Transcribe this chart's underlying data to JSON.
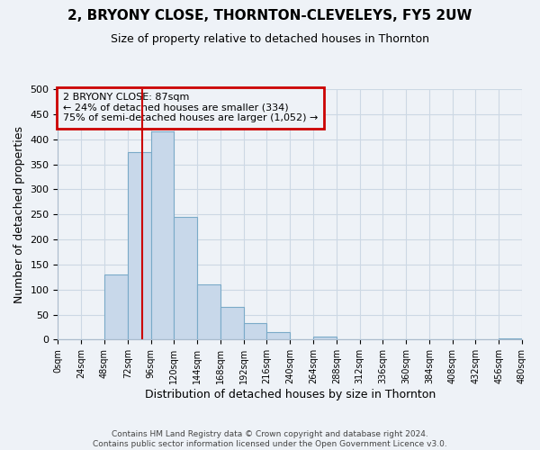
{
  "title": "2, BRYONY CLOSE, THORNTON-CLEVELEYS, FY5 2UW",
  "subtitle": "Size of property relative to detached houses in Thornton",
  "xlabel": "Distribution of detached houses by size in Thornton",
  "ylabel": "Number of detached properties",
  "footer_line1": "Contains HM Land Registry data © Crown copyright and database right 2024.",
  "footer_line2": "Contains public sector information licensed under the Open Government Licence v3.0.",
  "bin_edges": [
    0,
    24,
    48,
    72,
    96,
    120,
    144,
    168,
    192,
    216,
    240,
    264,
    288,
    312,
    336,
    360,
    384,
    408,
    432,
    456,
    480
  ],
  "bar_values": [
    0,
    0,
    130,
    375,
    415,
    245,
    110,
    65,
    33,
    16,
    0,
    6,
    0,
    0,
    0,
    0,
    0,
    0,
    0,
    2
  ],
  "bar_color": "#c8d8ea",
  "bar_edge_color": "#7aaac8",
  "property_size": 87,
  "marker_line_color": "#cc0000",
  "annotation_title": "2 BRYONY CLOSE: 87sqm",
  "annotation_line1": "← 24% of detached houses are smaller (334)",
  "annotation_line2": "75% of semi-detached houses are larger (1,052) →",
  "annotation_box_edge_color": "#cc0000",
  "ylim": [
    0,
    500
  ],
  "xlim": [
    0,
    480
  ],
  "yticks": [
    0,
    50,
    100,
    150,
    200,
    250,
    300,
    350,
    400,
    450,
    500
  ],
  "xtick_labels": [
    "0sqm",
    "24sqm",
    "48sqm",
    "72sqm",
    "96sqm",
    "120sqm",
    "144sqm",
    "168sqm",
    "192sqm",
    "216sqm",
    "240sqm",
    "264sqm",
    "288sqm",
    "312sqm",
    "336sqm",
    "360sqm",
    "384sqm",
    "408sqm",
    "432sqm",
    "456sqm",
    "480sqm"
  ],
  "grid_color": "#ccd8e4",
  "background_color": "#eef2f7"
}
